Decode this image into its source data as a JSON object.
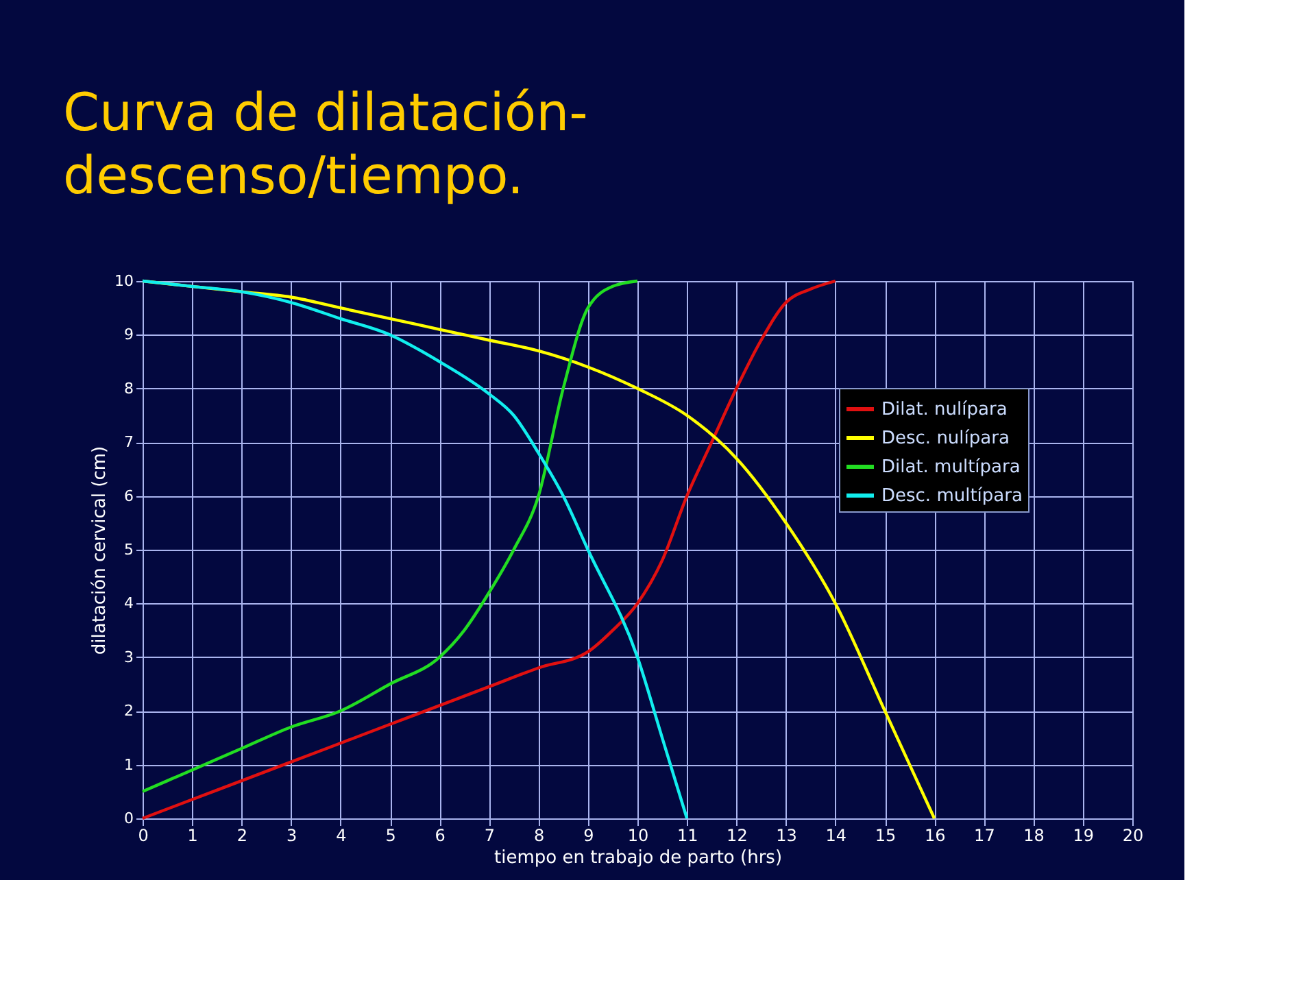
{
  "chart_data": {
    "type": "line",
    "title": "Curva de dilatación-descenso/tiempo.",
    "xlabel": "tiempo en trabajo de parto (hrs)",
    "ylabel": "dilatación cervical (cm)",
    "xlim": [
      0,
      20
    ],
    "xticks": [
      0,
      1,
      2,
      3,
      4,
      5,
      6,
      7,
      8,
      9,
      10,
      11,
      12,
      13,
      14,
      15,
      16,
      17,
      18,
      19,
      20
    ],
    "ylim": [
      0,
      10
    ],
    "yticks": [
      0,
      1,
      2,
      3,
      4,
      5,
      6,
      7,
      8,
      9,
      10
    ],
    "grid": true,
    "legend": "top right",
    "marker": "none",
    "line_style": "solid",
    "series": [
      {
        "name": "Dilat. nulípara",
        "color": "#e01010",
        "x": [
          0,
          1,
          2,
          3,
          4,
          5,
          6,
          7,
          8,
          9,
          9.5,
          10,
          10.5,
          11,
          11.5,
          12,
          12.5,
          13,
          13.5,
          14
        ],
        "values": [
          0,
          0.35,
          0.7,
          1.05,
          1.4,
          1.75,
          2.1,
          2.45,
          2.8,
          3.1,
          3.5,
          4,
          4.8,
          6,
          7,
          8,
          8.9,
          9.6,
          9.85,
          10
        ]
      },
      {
        "name": "Desc. nulípara",
        "color": "#ffff00",
        "x": [
          0,
          2,
          3,
          4,
          5,
          6,
          7,
          8,
          9,
          10,
          11,
          12,
          13,
          14,
          15,
          16
        ],
        "values": [
          10,
          9.8,
          9.7,
          9.5,
          9.3,
          9.1,
          8.9,
          8.7,
          8.4,
          8,
          7.5,
          6.7,
          5.5,
          4,
          2,
          0
        ]
      },
      {
        "name": "Dilat. multípara",
        "color": "#22dd22",
        "x": [
          0,
          1,
          2,
          3,
          4,
          5,
          6,
          6.5,
          7,
          7.5,
          8,
          8.5,
          9,
          9.5,
          10
        ],
        "values": [
          0.5,
          0.9,
          1.3,
          1.7,
          2,
          2.5,
          3,
          3.5,
          4.2,
          5,
          6,
          8,
          9.5,
          9.9,
          10
        ]
      },
      {
        "name": "Desc. multípara",
        "color": "#11eeee",
        "x": [
          0,
          1,
          2,
          3,
          4,
          5,
          6,
          7,
          7.5,
          8,
          8.5,
          9,
          10,
          10.5,
          11
        ],
        "values": [
          10,
          9.9,
          9.8,
          9.6,
          9.3,
          9,
          8.5,
          7.9,
          7.5,
          6.8,
          6,
          5,
          3,
          1.5,
          0
        ]
      }
    ]
  }
}
